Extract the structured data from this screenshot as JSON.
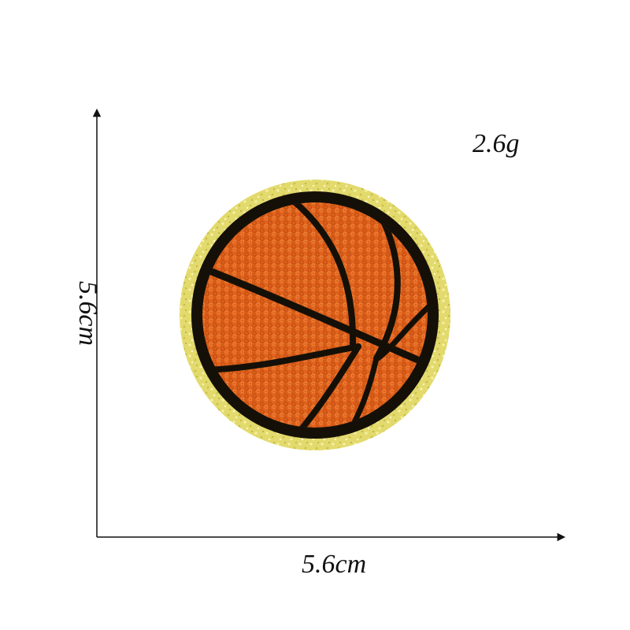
{
  "labels": {
    "weight": "2.6g",
    "width": "5.6cm",
    "height": "5.6cm"
  },
  "colors": {
    "glitter_rim": "#e3da6e",
    "outline": "#141008",
    "chenille_orange": "#e0621c",
    "axis": "#111111"
  },
  "subject": {
    "icon": "basketball-patch-icon"
  }
}
